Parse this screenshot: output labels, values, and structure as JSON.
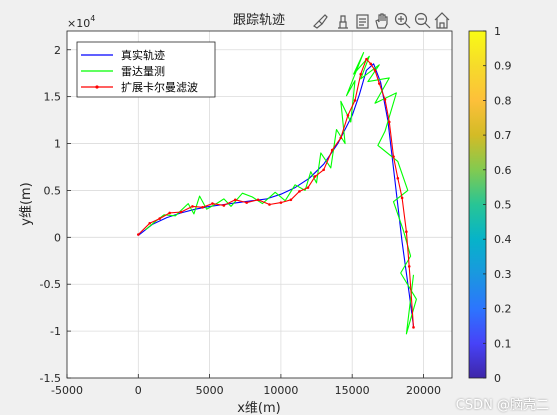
{
  "toolbar": {
    "icons": [
      "brush-icon",
      "data-tip-icon",
      "export-icon",
      "pan-hand-icon",
      "zoom-in-icon",
      "zoom-out-icon",
      "home-icon"
    ]
  },
  "watermark": "CSDN @脑壳二",
  "colors": {
    "true_track": "#0000ff",
    "radar": "#00ff00",
    "ekf": "#ff0000"
  },
  "chart_data": {
    "type": "line",
    "title": "跟踪轨迹",
    "xlabel": "x维(m)",
    "ylabel": "y维(m)",
    "xlim": [
      -5000,
      22000
    ],
    "ylim": [
      -15000,
      22000
    ],
    "x_ticks": [
      "-5000",
      "0",
      "5000",
      "10000",
      "15000",
      "20000"
    ],
    "y_ticks": [
      "-1.5",
      "-1",
      "-0.5",
      "0",
      "0.5",
      "1",
      "1.5",
      "2"
    ],
    "y_exponent_base": "×10",
    "y_exponent_power": "4",
    "grid": true,
    "legend_position": "top-left",
    "series": [
      {
        "name": "真实轨迹",
        "color": "#0000ff",
        "x": [
          0,
          1000,
          2000,
          3000,
          4000,
          5000,
          6000,
          7000,
          8000,
          9000,
          10000,
          11000,
          12000,
          13000,
          14000,
          15000,
          15500,
          16000,
          16500,
          17000,
          17500,
          18000,
          18500,
          19000,
          19300
        ],
        "y": [
          200,
          1400,
          2100,
          2600,
          3000,
          3300,
          3500,
          3700,
          3900,
          4100,
          4600,
          5300,
          6300,
          7800,
          10000,
          13000,
          15200,
          17800,
          18500,
          16500,
          12500,
          6000,
          -500,
          -6000,
          -9500
        ]
      },
      {
        "name": "雷达量测",
        "color": "#00ff00",
        "x": [
          500,
          1200,
          1800,
          2600,
          3500,
          3900,
          4300,
          4800,
          5600,
          6000,
          6500,
          7300,
          8000,
          8700,
          9600,
          10300,
          11000,
          11700,
          12100,
          12500,
          12800,
          13500,
          13900,
          14500,
          14200,
          14900,
          15200,
          14600,
          15800,
          15100,
          16200,
          15600,
          16900,
          16100,
          17600,
          16600,
          18100,
          17300,
          16800,
          18200,
          18900,
          17900,
          18600,
          19100,
          18400,
          19500,
          18800,
          19300
        ],
        "y": [
          800,
          1700,
          2400,
          2300,
          3600,
          2500,
          4400,
          3000,
          3700,
          4100,
          3300,
          4700,
          4300,
          3600,
          4800,
          3900,
          5600,
          5000,
          7000,
          5800,
          9000,
          7400,
          11500,
          10000,
          14500,
          12300,
          16700,
          15100,
          19700,
          17400,
          19300,
          16900,
          18400,
          16600,
          17000,
          14300,
          15400,
          11300,
          9800,
          8100,
          5000,
          3800,
          700,
          -2000,
          -3800,
          -6600,
          -10300,
          -4000
        ]
      },
      {
        "name": "扩展卡尔曼滤波",
        "color": "#ff0000",
        "x": [
          0,
          800,
          1500,
          2200,
          3000,
          3800,
          4500,
          5200,
          6000,
          6800,
          7600,
          8400,
          9200,
          10000,
          10700,
          11300,
          11900,
          12400,
          13000,
          13600,
          14200,
          14700,
          15200,
          15600,
          16000,
          16300,
          16600,
          16900,
          17300,
          17600,
          17900,
          18200,
          18500,
          18800,
          19000,
          19300
        ],
        "y": [
          300,
          1500,
          2000,
          2600,
          2700,
          3300,
          3200,
          3600,
          3400,
          4000,
          3700,
          4000,
          3500,
          3700,
          4000,
          4900,
          5300,
          6500,
          7200,
          9300,
          10600,
          13000,
          14600,
          17400,
          19000,
          18500,
          17800,
          16400,
          14700,
          12300,
          8600,
          6300,
          4200,
          600,
          -3100,
          -9600
        ]
      }
    ],
    "colorbar": {
      "ticks": [
        "0",
        "0.1",
        "0.2",
        "0.3",
        "0.4",
        "0.5",
        "0.6",
        "0.7",
        "0.8",
        "0.9",
        "1"
      ],
      "colormap": [
        "#3e26a8",
        "#4743f8",
        "#2c75fe",
        "#1a98df",
        "#06b3c9",
        "#28c595",
        "#82ca50",
        "#d3bb26",
        "#fdc03a",
        "#f6db2a",
        "#f9fb15"
      ]
    }
  }
}
